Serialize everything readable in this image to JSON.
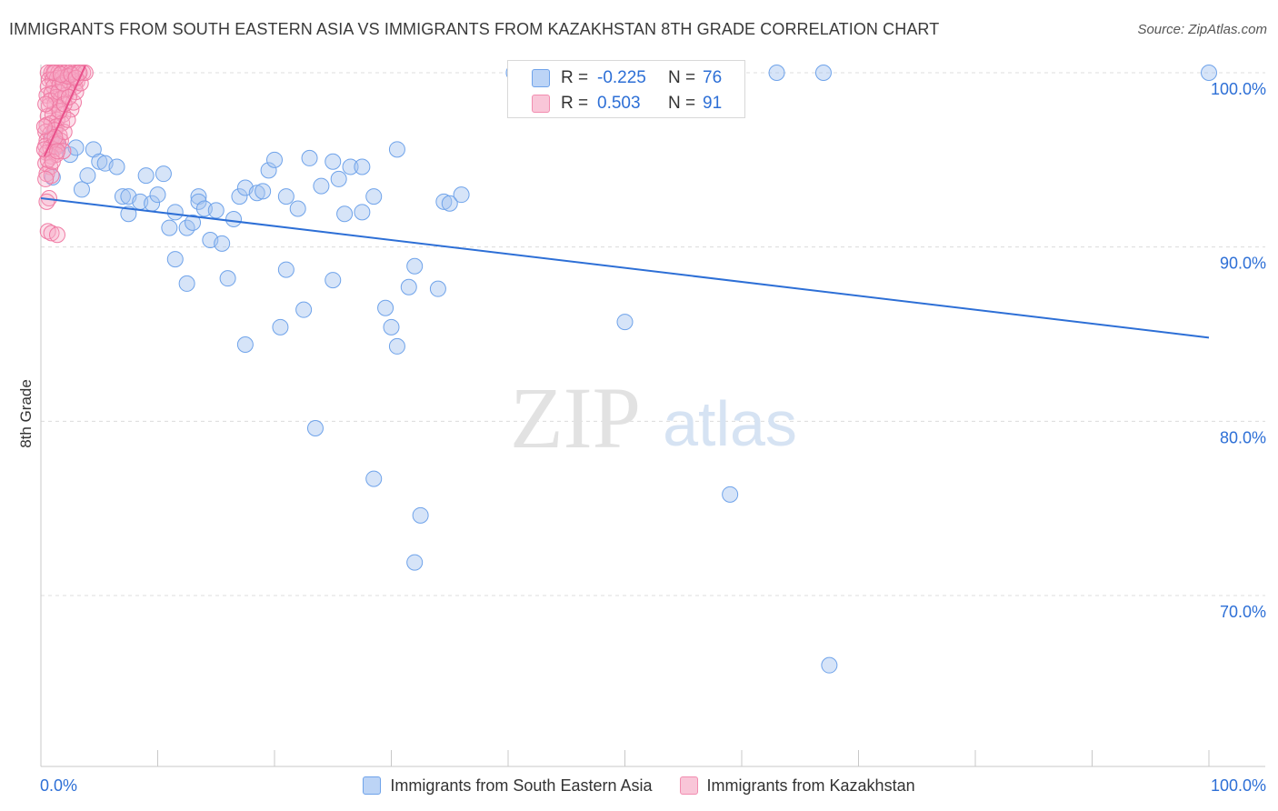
{
  "title": "IMMIGRANTS FROM SOUTH EASTERN ASIA VS IMMIGRANTS FROM KAZAKHSTAN 8TH GRADE CORRELATION CHART",
  "source": "Source: ZipAtlas.com",
  "watermark": {
    "zip": "ZIP",
    "atlas": "atlas"
  },
  "stats": [
    {
      "r_label": "R =",
      "r_value": "-0.225",
      "n_label": "N =",
      "n_value": "76",
      "color": "#6fa3ea"
    },
    {
      "r_label": "R =",
      "r_value": "0.503",
      "n_label": "N =",
      "n_value": "91",
      "color": "#f28db0"
    }
  ],
  "legend": [
    {
      "label": "Immigrants from South Eastern Asia",
      "color": "#6fa3ea"
    },
    {
      "label": "Immigrants from Kazakhstan",
      "color": "#f28db0"
    }
  ],
  "chart_data": {
    "type": "scatter",
    "xlabel": "",
    "ylabel": "8th Grade",
    "xlim": [
      0,
      100
    ],
    "ylim": [
      60.5,
      101.5
    ],
    "x_tick_labels": [
      "0.0%",
      "100.0%"
    ],
    "y_ticks": [
      100,
      90,
      80,
      70
    ],
    "y_tick_labels": [
      "100.0%",
      "90.0%",
      "80.0%",
      "70.0%"
    ],
    "grid": "horizontal dashed",
    "series": [
      {
        "name": "Immigrants from South Eastern Asia",
        "color": "#6fa3ea",
        "trend": {
          "x": [
            0,
            100
          ],
          "y": [
            92.8,
            84.8
          ]
        },
        "points": [
          [
            1.0,
            96.4
          ],
          [
            1.5,
            95.8
          ],
          [
            2.5,
            95.3
          ],
          [
            4.5,
            95.6
          ],
          [
            5.0,
            94.9
          ],
          [
            3.5,
            93.3
          ],
          [
            4.0,
            94.1
          ],
          [
            5.5,
            94.8
          ],
          [
            6.5,
            94.6
          ],
          [
            7.0,
            92.9
          ],
          [
            7.5,
            92.9
          ],
          [
            8.5,
            92.6
          ],
          [
            7.5,
            91.9
          ],
          [
            9.0,
            94.1
          ],
          [
            9.5,
            92.5
          ],
          [
            10.0,
            93.0
          ],
          [
            10.5,
            94.2
          ],
          [
            11.0,
            91.1
          ],
          [
            11.5,
            89.3
          ],
          [
            11.5,
            92.0
          ],
          [
            12.5,
            87.9
          ],
          [
            12.5,
            91.1
          ],
          [
            13.0,
            91.4
          ],
          [
            13.5,
            92.9
          ],
          [
            13.5,
            92.6
          ],
          [
            14.0,
            92.2
          ],
          [
            14.5,
            90.4
          ],
          [
            15.0,
            92.1
          ],
          [
            15.5,
            90.2
          ],
          [
            16.0,
            88.2
          ],
          [
            16.5,
            91.6
          ],
          [
            17.0,
            92.9
          ],
          [
            17.5,
            93.4
          ],
          [
            17.5,
            84.4
          ],
          [
            18.5,
            93.1
          ],
          [
            19.0,
            93.2
          ],
          [
            19.5,
            94.4
          ],
          [
            20.0,
            95.0
          ],
          [
            21.0,
            92.9
          ],
          [
            21.0,
            88.7
          ],
          [
            20.5,
            85.4
          ],
          [
            22.0,
            92.2
          ],
          [
            22.5,
            86.4
          ],
          [
            23.0,
            95.1
          ],
          [
            23.5,
            79.6
          ],
          [
            24.0,
            93.5
          ],
          [
            25.0,
            94.9
          ],
          [
            25.5,
            93.9
          ],
          [
            25.0,
            88.1
          ],
          [
            26.0,
            91.9
          ],
          [
            26.5,
            94.6
          ],
          [
            27.5,
            94.6
          ],
          [
            27.5,
            92.0
          ],
          [
            28.5,
            76.7
          ],
          [
            28.5,
            92.9
          ],
          [
            29.5,
            86.5
          ],
          [
            30.0,
            85.4
          ],
          [
            30.5,
            95.6
          ],
          [
            30.5,
            84.3
          ],
          [
            31.5,
            87.7
          ],
          [
            32.0,
            88.9
          ],
          [
            32.5,
            74.6
          ],
          [
            32.0,
            71.9
          ],
          [
            34.0,
            87.6
          ],
          [
            34.5,
            92.6
          ],
          [
            35.0,
            92.5
          ],
          [
            36.0,
            93.0
          ],
          [
            40.5,
            100.0
          ],
          [
            50.0,
            85.7
          ],
          [
            59.0,
            75.8
          ],
          [
            63.0,
            100.0
          ],
          [
            67.0,
            100.0
          ],
          [
            67.5,
            66.0
          ],
          [
            100.0,
            100.0
          ],
          [
            1.0,
            94.0
          ],
          [
            3.0,
            95.7
          ]
        ]
      },
      {
        "name": "Immigrants from Kazakhstan",
        "color": "#f28db0",
        "trend": {
          "x": [
            0.3,
            3.8
          ],
          "y": [
            95.2,
            100.4
          ]
        },
        "points": [
          [
            0.6,
            100.0
          ],
          [
            0.9,
            100.0
          ],
          [
            1.2,
            100.0
          ],
          [
            1.5,
            100.0
          ],
          [
            1.8,
            100.0
          ],
          [
            2.1,
            100.0
          ],
          [
            2.5,
            100.0
          ],
          [
            2.9,
            100.0
          ],
          [
            3.2,
            100.0
          ],
          [
            3.6,
            100.0
          ],
          [
            0.7,
            99.6
          ],
          [
            1.0,
            99.6
          ],
          [
            1.4,
            99.7
          ],
          [
            1.8,
            99.7
          ],
          [
            2.2,
            99.6
          ],
          [
            2.7,
            99.6
          ],
          [
            3.1,
            99.5
          ],
          [
            0.6,
            99.2
          ],
          [
            1.1,
            99.2
          ],
          [
            1.6,
            99.3
          ],
          [
            2.0,
            99.0
          ],
          [
            2.4,
            99.1
          ],
          [
            2.9,
            99.2
          ],
          [
            0.5,
            98.7
          ],
          [
            0.9,
            98.8
          ],
          [
            1.3,
            98.6
          ],
          [
            1.7,
            98.5
          ],
          [
            2.1,
            98.7
          ],
          [
            0.7,
            98.1
          ],
          [
            1.2,
            98.2
          ],
          [
            1.6,
            98.0
          ],
          [
            2.6,
            97.9
          ],
          [
            0.6,
            97.5
          ],
          [
            1.0,
            97.6
          ],
          [
            1.4,
            97.3
          ],
          [
            1.9,
            97.6
          ],
          [
            0.5,
            97.0
          ],
          [
            0.9,
            97.1
          ],
          [
            1.3,
            96.9
          ],
          [
            1.8,
            97.1
          ],
          [
            0.4,
            96.6
          ],
          [
            0.8,
            96.5
          ],
          [
            1.2,
            96.7
          ],
          [
            1.6,
            96.4
          ],
          [
            0.5,
            96.1
          ],
          [
            0.9,
            96.2
          ],
          [
            1.3,
            96.0
          ],
          [
            1.7,
            96.1
          ],
          [
            0.4,
            95.8
          ],
          [
            0.8,
            95.7
          ],
          [
            1.1,
            95.6
          ],
          [
            1.5,
            95.9
          ],
          [
            1.9,
            95.5
          ],
          [
            0.5,
            95.4
          ],
          [
            0.9,
            95.2
          ],
          [
            1.3,
            95.3
          ],
          [
            0.4,
            94.8
          ],
          [
            0.8,
            94.6
          ],
          [
            0.5,
            94.2
          ],
          [
            0.9,
            94.1
          ],
          [
            0.4,
            93.9
          ],
          [
            0.7,
            92.8
          ],
          [
            0.5,
            92.6
          ],
          [
            0.6,
            90.9
          ],
          [
            0.9,
            90.8
          ],
          [
            1.4,
            90.7
          ],
          [
            2.0,
            96.6
          ],
          [
            2.3,
            97.3
          ],
          [
            2.8,
            98.3
          ],
          [
            3.0,
            98.9
          ],
          [
            3.4,
            99.4
          ],
          [
            3.8,
            100.0
          ],
          [
            1.1,
            100.0
          ],
          [
            0.8,
            98.4
          ],
          [
            1.5,
            98.9
          ],
          [
            1.9,
            99.4
          ],
          [
            2.3,
            99.8
          ],
          [
            0.6,
            95.0
          ],
          [
            1.0,
            94.9
          ],
          [
            1.2,
            96.3
          ],
          [
            1.6,
            97.8
          ],
          [
            2.0,
            98.2
          ],
          [
            2.4,
            98.6
          ],
          [
            0.3,
            96.9
          ],
          [
            0.3,
            95.6
          ],
          [
            0.4,
            98.2
          ],
          [
            1.7,
            99.9
          ],
          [
            2.6,
            99.9
          ],
          [
            3.0,
            99.7
          ],
          [
            3.3,
            100.0
          ],
          [
            1.4,
            95.5
          ]
        ]
      }
    ]
  }
}
